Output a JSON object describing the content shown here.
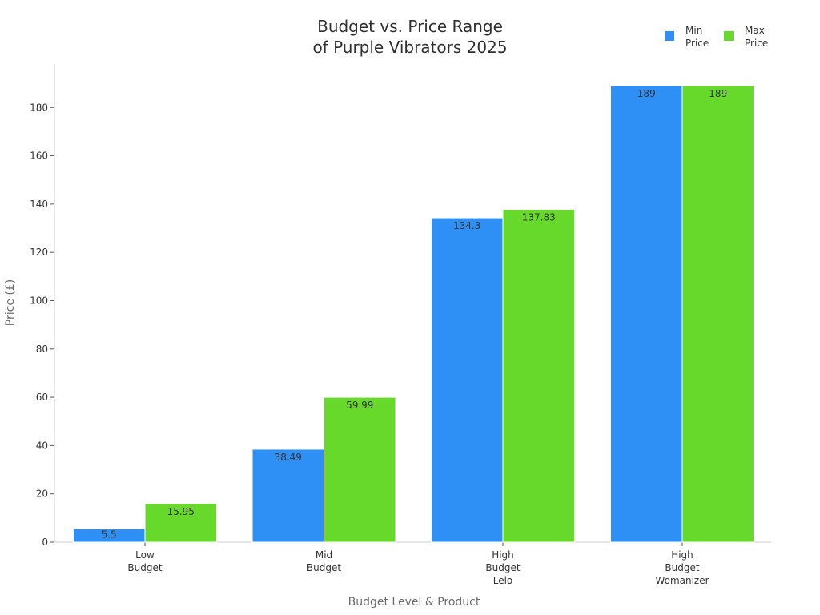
{
  "chart_data": {
    "type": "bar",
    "title": [
      "Budget vs. Price Range",
      "of Purple Vibrators 2025"
    ],
    "xlabel": "Budget Level & Product",
    "ylabel": "Price (£)",
    "ylim": [
      0,
      198
    ],
    "yticks": [
      0,
      20,
      40,
      60,
      80,
      100,
      120,
      140,
      160,
      180
    ],
    "categories": [
      [
        "Low",
        "Budget"
      ],
      [
        "Mid",
        "Budget"
      ],
      [
        "High",
        "Budget",
        "Lelo"
      ],
      [
        "High",
        "Budget",
        "Womanizer"
      ]
    ],
    "series": [
      {
        "name": [
          "Min",
          "Price"
        ],
        "color": "#2e90f5",
        "values": [
          5.5,
          38.49,
          134.3,
          189
        ],
        "labels": [
          "5.5",
          "38.49",
          "134.3",
          "189"
        ]
      },
      {
        "name": [
          "Max",
          "Price"
        ],
        "color": "#66d92b",
        "values": [
          15.95,
          59.99,
          137.83,
          189
        ],
        "labels": [
          "15.95",
          "59.99",
          "137.83",
          "189"
        ]
      }
    ],
    "grid": false,
    "legend": "top-right"
  }
}
